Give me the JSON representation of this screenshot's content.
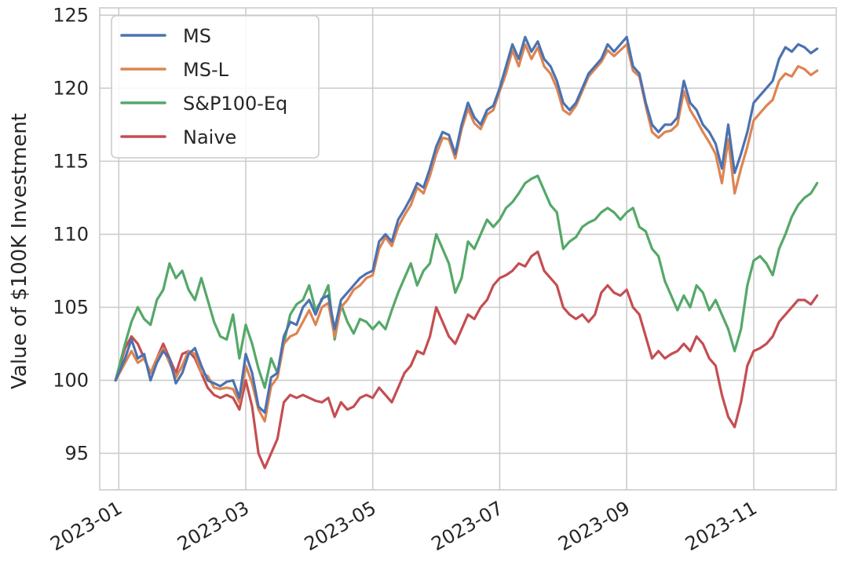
{
  "chart_data": {
    "type": "line",
    "title": "",
    "xlabel": "",
    "ylabel": "Value of $100K Investment",
    "ylim": [
      92.5,
      125.5
    ],
    "yticks": [
      95,
      100,
      105,
      110,
      115,
      120,
      125
    ],
    "ytick_labels": [
      "95",
      "100",
      "105",
      "110",
      "115",
      "120",
      "125"
    ],
    "xlim": [
      -0.3,
      11.3
    ],
    "xticks": [
      0,
      2,
      4,
      6,
      8,
      10
    ],
    "xtick_labels": [
      "2023-01",
      "2023-03",
      "2023-05",
      "2023-07",
      "2023-09",
      "2023-11"
    ],
    "grid": true,
    "legend_position": "top-left",
    "series": [
      {
        "name": "MS",
        "color": "#4c72b0",
        "x": [
          -0.05,
          0.1,
          0.2,
          0.3,
          0.4,
          0.5,
          0.6,
          0.7,
          0.8,
          0.9,
          1.0,
          1.1,
          1.2,
          1.3,
          1.4,
          1.5,
          1.6,
          1.7,
          1.8,
          1.9,
          2.0,
          2.1,
          2.2,
          2.3,
          2.4,
          2.5,
          2.6,
          2.7,
          2.8,
          2.9,
          3.0,
          3.1,
          3.2,
          3.3,
          3.4,
          3.5,
          3.6,
          3.7,
          3.8,
          3.9,
          4.0,
          4.1,
          4.2,
          4.3,
          4.4,
          4.5,
          4.6,
          4.7,
          4.8,
          4.9,
          5.0,
          5.1,
          5.2,
          5.3,
          5.4,
          5.5,
          5.6,
          5.7,
          5.8,
          5.9,
          6.0,
          6.1,
          6.2,
          6.3,
          6.4,
          6.5,
          6.6,
          6.7,
          6.8,
          6.9,
          7.0,
          7.1,
          7.2,
          7.3,
          7.4,
          7.5,
          7.6,
          7.7,
          7.8,
          7.9,
          8.0,
          8.1,
          8.2,
          8.3,
          8.4,
          8.5,
          8.6,
          8.7,
          8.8,
          8.9,
          9.0,
          9.1,
          9.2,
          9.3,
          9.4,
          9.5,
          9.6,
          9.7,
          9.8,
          9.9,
          10.0,
          10.1,
          10.2,
          10.3,
          10.4,
          10.5,
          10.6,
          10.7,
          10.8,
          10.9,
          11.0
        ],
        "values": [
          100.0,
          101.5,
          102.8,
          101.5,
          101.8,
          100.0,
          101.2,
          102.0,
          101.5,
          99.8,
          100.5,
          101.8,
          102.2,
          101.0,
          100.0,
          99.8,
          99.6,
          99.9,
          100.0,
          98.8,
          101.8,
          100.5,
          98.2,
          97.8,
          100.2,
          100.5,
          103.0,
          104.0,
          103.8,
          105.0,
          105.5,
          104.5,
          105.6,
          105.8,
          103.5,
          105.5,
          106.0,
          106.5,
          107.0,
          107.3,
          107.5,
          109.5,
          110.0,
          109.5,
          111.0,
          111.7,
          112.5,
          113.5,
          113.2,
          114.5,
          116.0,
          117.0,
          116.8,
          115.5,
          117.5,
          119.0,
          118.0,
          117.5,
          118.5,
          118.8,
          120.0,
          121.5,
          123.0,
          122.0,
          123.5,
          122.5,
          123.2,
          122.0,
          121.5,
          120.5,
          119.0,
          118.5,
          119.0,
          120.0,
          121.0,
          121.5,
          122.0,
          123.0,
          122.5,
          123.0,
          123.5,
          121.5,
          121.0,
          119.0,
          117.5,
          117.0,
          117.5,
          117.5,
          118.0,
          120.5,
          119.0,
          118.5,
          117.5,
          117.0,
          116.2,
          114.5,
          117.5,
          114.2,
          115.5,
          117.0,
          119.0,
          119.5,
          120.0,
          120.5,
          122.0,
          122.8,
          122.5,
          123.0,
          122.8,
          122.4,
          122.7
        ]
      },
      {
        "name": "MS-L",
        "color": "#dd8452",
        "x": [
          -0.05,
          0.1,
          0.2,
          0.3,
          0.4,
          0.5,
          0.6,
          0.7,
          0.8,
          0.9,
          1.0,
          1.1,
          1.2,
          1.3,
          1.4,
          1.5,
          1.6,
          1.7,
          1.8,
          1.9,
          2.0,
          2.1,
          2.2,
          2.3,
          2.4,
          2.5,
          2.6,
          2.7,
          2.8,
          2.9,
          3.0,
          3.1,
          3.2,
          3.3,
          3.4,
          3.5,
          3.6,
          3.7,
          3.8,
          3.9,
          4.0,
          4.1,
          4.2,
          4.3,
          4.4,
          4.5,
          4.6,
          4.7,
          4.8,
          4.9,
          5.0,
          5.1,
          5.2,
          5.3,
          5.4,
          5.5,
          5.6,
          5.7,
          5.8,
          5.9,
          6.0,
          6.1,
          6.2,
          6.3,
          6.4,
          6.5,
          6.6,
          6.7,
          6.8,
          6.9,
          7.0,
          7.1,
          7.2,
          7.3,
          7.4,
          7.5,
          7.6,
          7.7,
          7.8,
          7.9,
          8.0,
          8.1,
          8.2,
          8.3,
          8.4,
          8.5,
          8.6,
          8.7,
          8.8,
          8.9,
          9.0,
          9.1,
          9.2,
          9.3,
          9.4,
          9.5,
          9.6,
          9.7,
          9.8,
          9.9,
          10.0,
          10.1,
          10.2,
          10.3,
          10.4,
          10.5,
          10.6,
          10.7,
          10.8,
          10.9,
          11.0
        ],
        "values": [
          100.0,
          101.2,
          102.0,
          101.2,
          101.5,
          100.5,
          101.5,
          102.2,
          101.2,
          100.2,
          101.0,
          102.0,
          101.8,
          100.5,
          100.3,
          99.5,
          99.4,
          99.5,
          99.4,
          98.5,
          101.0,
          99.8,
          98.0,
          97.2,
          99.6,
          100.2,
          102.5,
          103.0,
          103.2,
          104.0,
          104.8,
          103.8,
          105.0,
          105.3,
          103.0,
          105.0,
          105.5,
          106.2,
          106.5,
          107.0,
          107.2,
          109.0,
          109.8,
          109.2,
          110.5,
          111.3,
          112.0,
          113.2,
          112.8,
          114.0,
          115.5,
          116.6,
          116.5,
          115.2,
          117.2,
          118.6,
          117.6,
          117.2,
          118.2,
          118.5,
          119.8,
          121.0,
          122.6,
          121.5,
          123.0,
          122.0,
          122.8,
          121.5,
          121.0,
          120.0,
          118.5,
          118.2,
          118.8,
          119.8,
          120.8,
          121.3,
          121.8,
          122.6,
          122.2,
          122.6,
          123.0,
          121.2,
          120.8,
          118.8,
          117.0,
          116.6,
          117.0,
          117.1,
          117.5,
          119.8,
          118.5,
          117.8,
          117.0,
          116.3,
          115.5,
          113.5,
          116.5,
          112.8,
          114.5,
          116.0,
          117.8,
          118.3,
          118.8,
          119.2,
          120.5,
          121.0,
          120.8,
          121.5,
          121.3,
          120.9,
          121.2
        ]
      },
      {
        "name": "S&P100-Eq",
        "color": "#55a868",
        "x": [
          -0.05,
          0.1,
          0.2,
          0.3,
          0.4,
          0.5,
          0.6,
          0.7,
          0.8,
          0.9,
          1.0,
          1.1,
          1.2,
          1.3,
          1.4,
          1.5,
          1.6,
          1.7,
          1.8,
          1.9,
          2.0,
          2.1,
          2.2,
          2.3,
          2.4,
          2.5,
          2.6,
          2.7,
          2.8,
          2.9,
          3.0,
          3.1,
          3.2,
          3.3,
          3.4,
          3.5,
          3.6,
          3.7,
          3.8,
          3.9,
          4.0,
          4.1,
          4.2,
          4.3,
          4.4,
          4.5,
          4.6,
          4.7,
          4.8,
          4.9,
          5.0,
          5.1,
          5.2,
          5.3,
          5.4,
          5.5,
          5.6,
          5.7,
          5.8,
          5.9,
          6.0,
          6.1,
          6.2,
          6.3,
          6.4,
          6.5,
          6.6,
          6.7,
          6.8,
          6.9,
          7.0,
          7.1,
          7.2,
          7.3,
          7.4,
          7.5,
          7.6,
          7.7,
          7.8,
          7.9,
          8.0,
          8.1,
          8.2,
          8.3,
          8.4,
          8.5,
          8.6,
          8.7,
          8.8,
          8.9,
          9.0,
          9.1,
          9.2,
          9.3,
          9.4,
          9.5,
          9.6,
          9.7,
          9.8,
          9.9,
          10.0,
          10.1,
          10.2,
          10.3,
          10.4,
          10.5,
          10.6,
          10.7,
          10.8,
          10.9,
          11.0
        ],
        "values": [
          100.0,
          102.5,
          104.0,
          105.0,
          104.2,
          103.8,
          105.5,
          106.2,
          108.0,
          107.0,
          107.5,
          106.2,
          105.5,
          107.0,
          105.5,
          104.0,
          103.0,
          102.8,
          104.5,
          101.5,
          103.8,
          102.5,
          100.8,
          99.5,
          101.5,
          100.5,
          102.5,
          104.5,
          105.2,
          105.5,
          106.5,
          104.8,
          105.5,
          106.5,
          102.8,
          105.2,
          104.0,
          103.2,
          104.2,
          104.0,
          103.5,
          104.0,
          103.5,
          104.8,
          106.0,
          107.0,
          108.0,
          106.5,
          107.5,
          108.0,
          110.0,
          109.0,
          108.0,
          106.0,
          107.0,
          109.5,
          109.0,
          110.0,
          111.0,
          110.5,
          111.0,
          111.8,
          112.2,
          112.8,
          113.5,
          113.8,
          114.0,
          113.0,
          112.0,
          111.5,
          109.0,
          109.5,
          109.8,
          110.5,
          110.8,
          111.0,
          111.5,
          111.8,
          111.5,
          111.0,
          111.5,
          111.8,
          110.5,
          110.2,
          109.0,
          108.5,
          106.8,
          105.8,
          104.8,
          105.8,
          105.0,
          106.5,
          106.0,
          104.8,
          105.5,
          104.5,
          103.5,
          102.0,
          103.5,
          106.5,
          108.2,
          108.5,
          108.0,
          107.2,
          109.0,
          110.0,
          111.2,
          112.0,
          112.5,
          112.8,
          113.5
        ]
      },
      {
        "name": "Naive",
        "color": "#c44e52",
        "x": [
          -0.05,
          0.1,
          0.2,
          0.3,
          0.4,
          0.5,
          0.6,
          0.7,
          0.8,
          0.9,
          1.0,
          1.1,
          1.2,
          1.3,
          1.4,
          1.5,
          1.6,
          1.7,
          1.8,
          1.9,
          2.0,
          2.1,
          2.2,
          2.3,
          2.4,
          2.5,
          2.6,
          2.7,
          2.8,
          2.9,
          3.0,
          3.1,
          3.2,
          3.3,
          3.4,
          3.5,
          3.6,
          3.7,
          3.8,
          3.9,
          4.0,
          4.1,
          4.2,
          4.3,
          4.4,
          4.5,
          4.6,
          4.7,
          4.8,
          4.9,
          5.0,
          5.1,
          5.2,
          5.3,
          5.4,
          5.5,
          5.6,
          5.7,
          5.8,
          5.9,
          6.0,
          6.1,
          6.2,
          6.3,
          6.4,
          6.5,
          6.6,
          6.7,
          6.8,
          6.9,
          7.0,
          7.1,
          7.2,
          7.3,
          7.4,
          7.5,
          7.6,
          7.7,
          7.8,
          7.9,
          8.0,
          8.1,
          8.2,
          8.3,
          8.4,
          8.5,
          8.6,
          8.7,
          8.8,
          8.9,
          9.0,
          9.1,
          9.2,
          9.3,
          9.4,
          9.5,
          9.6,
          9.7,
          9.8,
          9.9,
          10.0,
          10.1,
          10.2,
          10.3,
          10.4,
          10.5,
          10.6,
          10.7,
          10.8,
          10.9,
          11.0
        ],
        "values": [
          100.0,
          102.2,
          103.0,
          102.5,
          101.5,
          100.5,
          101.5,
          102.5,
          101.5,
          100.5,
          101.8,
          102.0,
          101.5,
          100.5,
          99.5,
          99.0,
          98.8,
          99.0,
          98.8,
          98.0,
          100.0,
          98.2,
          95.0,
          94.0,
          95.0,
          96.0,
          98.5,
          99.0,
          98.8,
          99.0,
          98.8,
          98.6,
          98.5,
          98.8,
          97.5,
          98.5,
          98.0,
          98.2,
          98.8,
          99.0,
          98.8,
          99.5,
          99.0,
          98.5,
          99.5,
          100.5,
          101.0,
          102.0,
          101.8,
          103.0,
          105.0,
          104.0,
          103.0,
          102.5,
          103.5,
          104.5,
          104.2,
          105.0,
          105.5,
          106.5,
          107.0,
          107.2,
          107.5,
          108.0,
          107.8,
          108.5,
          108.8,
          107.5,
          107.0,
          106.5,
          105.0,
          104.5,
          104.2,
          104.5,
          104.0,
          104.5,
          106.0,
          106.5,
          106.0,
          105.8,
          106.2,
          105.0,
          104.5,
          103.0,
          101.5,
          102.0,
          101.5,
          101.8,
          102.0,
          102.5,
          102.0,
          103.0,
          102.5,
          101.5,
          101.0,
          99.0,
          97.5,
          96.8,
          98.5,
          101.0,
          102.0,
          102.2,
          102.5,
          103.0,
          104.0,
          104.5,
          105.0,
          105.5,
          105.5,
          105.2,
          105.8
        ]
      }
    ]
  }
}
